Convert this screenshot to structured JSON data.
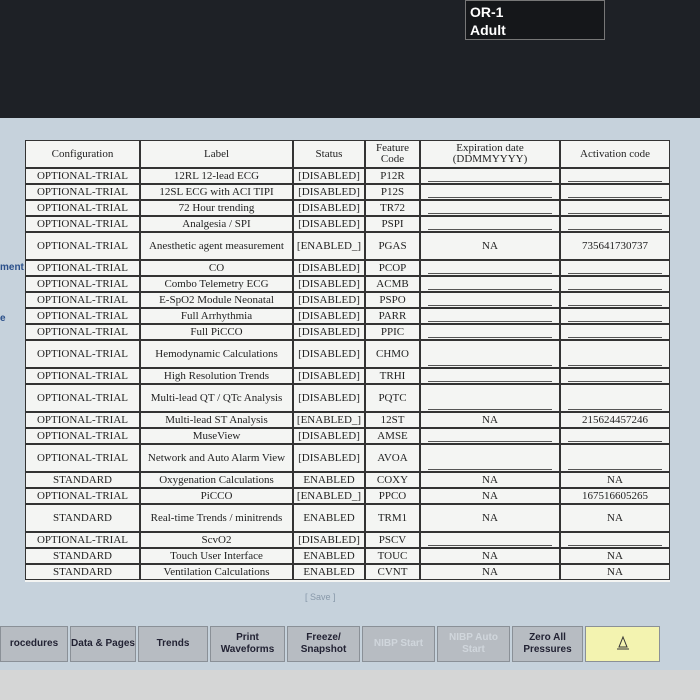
{
  "header": {
    "location": "OR-1",
    "patient": "Adult"
  },
  "side_labels": [
    "ment",
    "e"
  ],
  "table": {
    "columns": [
      "Configuration",
      "Label",
      "Status",
      "Feature Code",
      "Expiration date (DDMMYYYY)",
      "Activation code"
    ],
    "rows": [
      {
        "configuration": "OPTIONAL-TRIAL",
        "label": "12RL 12-lead ECG",
        "status": "[DISABLED]",
        "code": "P12R"
      },
      {
        "configuration": "OPTIONAL-TRIAL",
        "label": "12SL ECG with ACI TIPI",
        "status": "[DISABLED]",
        "code": "P12S"
      },
      {
        "configuration": "OPTIONAL-TRIAL",
        "label": "72 Hour trending",
        "status": "[DISABLED]",
        "code": "TR72"
      },
      {
        "configuration": "OPTIONAL-TRIAL",
        "label": "Analgesia / SPI",
        "status": "[DISABLED]",
        "code": "PSPI"
      },
      {
        "configuration": "OPTIONAL-TRIAL",
        "label": "Anesthetic agent measurement",
        "status": "[ENABLED_]",
        "code": "PGAS",
        "expiration": "NA",
        "activation": "735641730737"
      },
      {
        "configuration": "OPTIONAL-TRIAL",
        "label": "CO",
        "status": "[DISABLED]",
        "code": "PCOP"
      },
      {
        "configuration": "OPTIONAL-TRIAL",
        "label": "Combo Telemetry ECG",
        "status": "[DISABLED]",
        "code": "ACMB"
      },
      {
        "configuration": "OPTIONAL-TRIAL",
        "label": "E-SpO2 Module Neonatal",
        "status": "[DISABLED]",
        "code": "PSPO"
      },
      {
        "configuration": "OPTIONAL-TRIAL",
        "label": "Full Arrhythmia",
        "status": "[DISABLED]",
        "code": "PARR"
      },
      {
        "configuration": "OPTIONAL-TRIAL",
        "label": "Full PiCCO",
        "status": "[DISABLED]",
        "code": "PPIC"
      },
      {
        "configuration": "OPTIONAL-TRIAL",
        "label": "Hemodynamic Calculations",
        "status": "[DISABLED]",
        "code": "CHMO"
      },
      {
        "configuration": "OPTIONAL-TRIAL",
        "label": "High Resolution Trends",
        "status": "[DISABLED]",
        "code": "TRHI"
      },
      {
        "configuration": "OPTIONAL-TRIAL",
        "label": "Multi-lead QT / QTc Analysis",
        "status": "[DISABLED]",
        "code": "PQTC"
      },
      {
        "configuration": "OPTIONAL-TRIAL",
        "label": "Multi-lead ST Analysis",
        "status": "[ENABLED_]",
        "code": "12ST",
        "expiration": "NA",
        "activation": "215624457246"
      },
      {
        "configuration": "OPTIONAL-TRIAL",
        "label": "MuseView",
        "status": "[DISABLED]",
        "code": "AMSE"
      },
      {
        "configuration": "OPTIONAL-TRIAL",
        "label": "Network and Auto Alarm View",
        "status": "[DISABLED]",
        "code": "AVOA"
      },
      {
        "configuration": "STANDARD",
        "label": "Oxygenation Calculations",
        "status": "ENABLED",
        "code": "COXY",
        "expiration": "NA",
        "activation": "NA"
      },
      {
        "configuration": "OPTIONAL-TRIAL",
        "label": "PiCCO",
        "status": "[ENABLED_]",
        "code": "PPCO",
        "expiration": "NA",
        "activation": "167516605265"
      },
      {
        "configuration": "STANDARD",
        "label": "Real-time Trends / minitrends",
        "status": "ENABLED",
        "code": "TRM1",
        "expiration": "NA",
        "activation": "NA"
      },
      {
        "configuration": "OPTIONAL-TRIAL",
        "label": "ScvO2",
        "status": "[DISABLED]",
        "code": "PSCV"
      },
      {
        "configuration": "STANDARD",
        "label": "Touch User Interface",
        "status": "ENABLED",
        "code": "TOUC",
        "expiration": "NA",
        "activation": "NA"
      },
      {
        "configuration": "STANDARD",
        "label": "Ventilation Calculations",
        "status": "ENABLED",
        "code": "CVNT",
        "expiration": "NA",
        "activation": "NA"
      }
    ]
  },
  "save_button": "[ Save ]",
  "buttons": [
    "rocedures",
    "Data & Pages",
    "Trends",
    "Print Waveforms",
    "Freeze/ Snapshot",
    "NIBP Start",
    "NIBP Auto Start",
    "Zero All Pressures"
  ]
}
